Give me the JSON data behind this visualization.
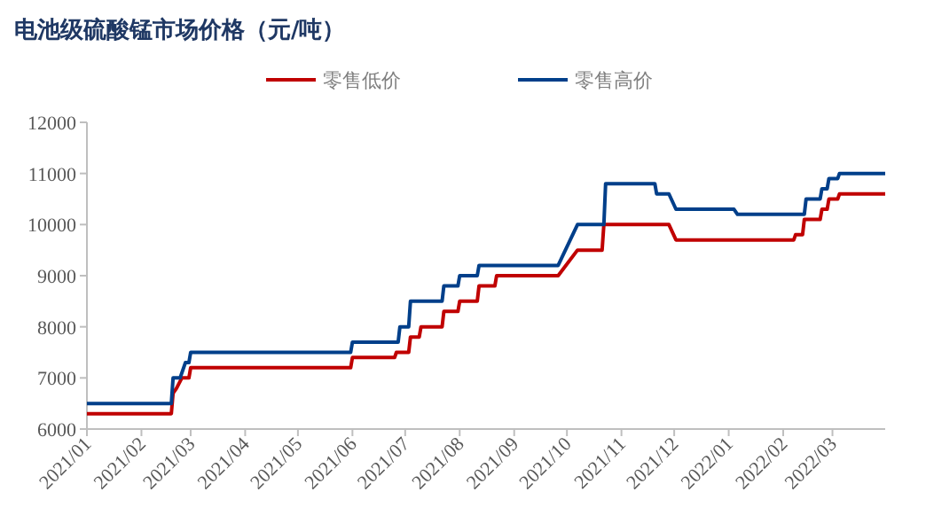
{
  "chart_data": {
    "type": "line",
    "title": "电池级硫酸锰市场价格（元/吨）",
    "legend": "top",
    "xlim": [
      "2021-01-01",
      "2022-03-31"
    ],
    "ylim": [
      6000,
      12000
    ],
    "yticks": [
      6000,
      7000,
      8000,
      9000,
      10000,
      11000,
      12000
    ],
    "xticks": [
      {
        "value": "2021-01-01",
        "label": "2021/01"
      },
      {
        "value": "2021-02-01",
        "label": "2021/02"
      },
      {
        "value": "2021-03-01",
        "label": "2021/03"
      },
      {
        "value": "2021-04-01",
        "label": "2021/04"
      },
      {
        "value": "2021-05-01",
        "label": "2021/05"
      },
      {
        "value": "2021-06-01",
        "label": "2021/06"
      },
      {
        "value": "2021-07-01",
        "label": "2021/07"
      },
      {
        "value": "2021-08-01",
        "label": "2021/08"
      },
      {
        "value": "2021-09-01",
        "label": "2021/09"
      },
      {
        "value": "2021-10-01",
        "label": "2021/10"
      },
      {
        "value": "2021-11-01",
        "label": "2021/11"
      },
      {
        "value": "2021-12-01",
        "label": "2021/12"
      },
      {
        "value": "2022-01-01",
        "label": "2022/01"
      },
      {
        "value": "2022-02-01",
        "label": "2022/02"
      },
      {
        "value": "2022-03-01",
        "label": "2022/03"
      }
    ],
    "series": [
      {
        "name": "零售低价",
        "color": "#c00000",
        "x": [
          "2021-01-01",
          "2021-02-18",
          "2021-02-19",
          "2021-02-21",
          "2021-02-24",
          "2021-02-28",
          "2021-03-01",
          "2021-05-31",
          "2021-06-01",
          "2021-06-25",
          "2021-06-26",
          "2021-07-03",
          "2021-07-04",
          "2021-07-09",
          "2021-07-10",
          "2021-07-22",
          "2021-07-23",
          "2021-07-31",
          "2021-08-01",
          "2021-08-11",
          "2021-08-12",
          "2021-08-21",
          "2021-08-22",
          "2021-09-26",
          "2021-10-07",
          "2021-10-21",
          "2021-10-22",
          "2021-11-28",
          "2021-12-02",
          "2022-02-07",
          "2022-02-08",
          "2022-02-12",
          "2022-02-13",
          "2022-02-22",
          "2022-02-23",
          "2022-02-26",
          "2022-02-27",
          "2022-03-04",
          "2022-03-05",
          "2022-03-31"
        ],
        "values": [
          6300,
          6300,
          6700,
          6800,
          7000,
          7000,
          7200,
          7200,
          7400,
          7400,
          7500,
          7500,
          7800,
          7800,
          8000,
          8000,
          8300,
          8300,
          8500,
          8500,
          8800,
          8800,
          9000,
          9000,
          9500,
          9500,
          10000,
          10000,
          9700,
          9700,
          9800,
          9800,
          10100,
          10100,
          10300,
          10300,
          10500,
          10500,
          10600,
          10600
        ]
      },
      {
        "name": "零售高价",
        "color": "#003f8a",
        "x": [
          "2021-01-01",
          "2021-02-18",
          "2021-02-19",
          "2021-02-23",
          "2021-02-26",
          "2021-02-28",
          "2021-03-01",
          "2021-05-31",
          "2021-06-01",
          "2021-06-27",
          "2021-06-28",
          "2021-07-03",
          "2021-07-04",
          "2021-07-22",
          "2021-07-23",
          "2021-07-31",
          "2021-08-01",
          "2021-08-11",
          "2021-08-12",
          "2021-09-26",
          "2021-10-07",
          "2021-10-22",
          "2021-10-23",
          "2021-11-20",
          "2021-11-21",
          "2021-11-28",
          "2021-12-02",
          "2022-01-04",
          "2022-01-06",
          "2022-02-13",
          "2022-02-14",
          "2022-02-22",
          "2022-02-23",
          "2022-02-26",
          "2022-02-27",
          "2022-03-04",
          "2022-03-05",
          "2022-03-31"
        ],
        "values": [
          6500,
          6500,
          7000,
          7000,
          7300,
          7300,
          7500,
          7500,
          7700,
          7700,
          8000,
          8000,
          8500,
          8500,
          8800,
          8800,
          9000,
          9000,
          9200,
          9200,
          10000,
          10000,
          10800,
          10800,
          10600,
          10600,
          10300,
          10300,
          10200,
          10200,
          10500,
          10500,
          10700,
          10700,
          10900,
          10900,
          11000,
          11000
        ]
      }
    ]
  }
}
